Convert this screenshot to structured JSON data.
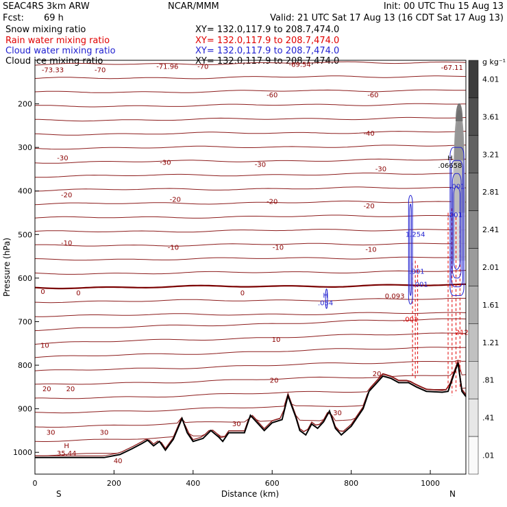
{
  "header": {
    "project": "SEAC4RS   3km ARW",
    "fcst_label": "Fcst:",
    "fcst_value": "69 h",
    "center": "NCAR/MMM",
    "init": "Init: 00 UTC Thu 15 Aug 13",
    "valid": "Valid: 21 UTC Sat 17 Aug 13 (16 CDT Sat 17 Aug 13)"
  },
  "fields": [
    {
      "name": "Snow mixing ratio",
      "xy": "XY= 132.0,117.9 to 208.7,474.0",
      "color": "#000000"
    },
    {
      "name": "Rain water mixing ratio",
      "xy": "XY= 132.0,117.9 to 208.7,474.0",
      "color": "#e00000"
    },
    {
      "name": "Cloud water mixing ratio",
      "xy": "XY= 132.0,117.9 to 208.7,474.0",
      "color": "#1f1fd0"
    },
    {
      "name": "Cloud ice mixing ratio",
      "xy": "XY= 132.0,117.9 to 208.7,474.0",
      "color": "#000000"
    }
  ],
  "colorbar": {
    "unit": "g kg⁻¹",
    "labels": [
      "4.01",
      "3.61",
      "3.21",
      "2.81",
      "2.41",
      "2.01",
      "1.61",
      "1.21",
      ".81",
      ".41",
      ".01"
    ]
  },
  "chart_data": {
    "type": "cross-section",
    "xlabel": "Distance (km)",
    "ylabel": "Pressure (hPa)",
    "xlim": [
      0,
      1090
    ],
    "ylim_hpa": [
      1050,
      100
    ],
    "x_ticks": [
      "0",
      "200",
      "400",
      "600",
      "800",
      "1000"
    ],
    "y_ticks": [
      "200",
      "300",
      "400",
      "500",
      "600",
      "700",
      "800",
      "900",
      "1000"
    ],
    "end_labels": {
      "left": "S",
      "right": "N"
    },
    "temperature_contour_labels": [
      {
        "text": "-73.33",
        "x": 45,
        "p": 123
      },
      {
        "text": "-70",
        "x": 165,
        "p": 123
      },
      {
        "text": "-71.96",
        "x": 335,
        "p": 115
      },
      {
        "text": "-70",
        "x": 425,
        "p": 115
      },
      {
        "text": "-69.54",
        "x": 670,
        "p": 110
      },
      {
        "text": "-67.11",
        "x": 1055,
        "p": 117
      },
      {
        "text": "-60",
        "x": 600,
        "p": 180
      },
      {
        "text": "-60",
        "x": 855,
        "p": 180
      },
      {
        "text": "-40",
        "x": 845,
        "p": 268
      },
      {
        "text": "-30",
        "x": 70,
        "p": 325
      },
      {
        "text": "-30",
        "x": 330,
        "p": 335
      },
      {
        "text": "-30",
        "x": 570,
        "p": 340
      },
      {
        "text": "-30",
        "x": 875,
        "p": 350
      },
      {
        "text": "-20",
        "x": 80,
        "p": 410
      },
      {
        "text": "-20",
        "x": 355,
        "p": 420
      },
      {
        "text": "-20",
        "x": 600,
        "p": 425
      },
      {
        "text": "-20",
        "x": 845,
        "p": 435
      },
      {
        "text": "-10",
        "x": 80,
        "p": 520
      },
      {
        "text": "-10",
        "x": 350,
        "p": 530
      },
      {
        "text": "-10",
        "x": 615,
        "p": 530
      },
      {
        "text": "-10",
        "x": 850,
        "p": 535
      },
      {
        "text": "0",
        "x": 20,
        "p": 632
      },
      {
        "text": "0",
        "x": 110,
        "p": 635
      },
      {
        "text": "0",
        "x": 525,
        "p": 635
      },
      {
        "text": "0.093",
        "x": 910,
        "p": 642
      },
      {
        "text": "10",
        "x": 25,
        "p": 755
      },
      {
        "text": "10",
        "x": 610,
        "p": 742
      },
      {
        "text": "20",
        "x": 30,
        "p": 855
      },
      {
        "text": "20",
        "x": 90,
        "p": 855
      },
      {
        "text": "20",
        "x": 605,
        "p": 835
      },
      {
        "text": "20",
        "x": 865,
        "p": 820
      },
      {
        "text": "30",
        "x": 40,
        "p": 955
      },
      {
        "text": "30",
        "x": 175,
        "p": 955
      },
      {
        "text": "30",
        "x": 510,
        "p": 935
      },
      {
        "text": "30",
        "x": 765,
        "p": 910
      },
      {
        "text": "40",
        "x": 210,
        "p": 1020
      }
    ],
    "maxima_labels": [
      {
        "text": "H",
        "sub": "35.44",
        "x": 80,
        "p": 990,
        "color": "#8b0000"
      },
      {
        "text": "H",
        "sub": ".054",
        "x": 735,
        "p": 645,
        "color": "#1f1fd0"
      },
      {
        "text": "H",
        "sub": ".06658",
        "x": 1050,
        "p": 330,
        "color": "#000000"
      }
    ],
    "cloud_values": [
      ".001",
      "1.254",
      ".001",
      ".001",
      ".001",
      "212",
      ".001"
    ],
    "terrain": [
      [
        0,
        1012
      ],
      [
        100,
        1012
      ],
      [
        175,
        1012
      ],
      [
        215,
        1005
      ],
      [
        245,
        992
      ],
      [
        270,
        980
      ],
      [
        285,
        972
      ],
      [
        300,
        985
      ],
      [
        315,
        975
      ],
      [
        330,
        995
      ],
      [
        350,
        970
      ],
      [
        372,
        922
      ],
      [
        385,
        955
      ],
      [
        400,
        975
      ],
      [
        425,
        968
      ],
      [
        445,
        950
      ],
      [
        465,
        965
      ],
      [
        475,
        975
      ],
      [
        490,
        955
      ],
      [
        510,
        955
      ],
      [
        530,
        955
      ],
      [
        545,
        915
      ],
      [
        560,
        930
      ],
      [
        580,
        950
      ],
      [
        600,
        932
      ],
      [
        625,
        925
      ],
      [
        640,
        870
      ],
      [
        650,
        895
      ],
      [
        660,
        920
      ],
      [
        670,
        950
      ],
      [
        685,
        960
      ],
      [
        700,
        935
      ],
      [
        715,
        945
      ],
      [
        730,
        930
      ],
      [
        745,
        905
      ],
      [
        760,
        945
      ],
      [
        775,
        960
      ],
      [
        800,
        940
      ],
      [
        830,
        900
      ],
      [
        845,
        860
      ],
      [
        860,
        845
      ],
      [
        880,
        825
      ],
      [
        900,
        830
      ],
      [
        920,
        840
      ],
      [
        945,
        840
      ],
      [
        965,
        850
      ],
      [
        990,
        860
      ],
      [
        1030,
        862
      ],
      [
        1045,
        860
      ],
      [
        1060,
        820
      ],
      [
        1070,
        795
      ],
      [
        1080,
        860
      ],
      [
        1090,
        872
      ]
    ]
  }
}
